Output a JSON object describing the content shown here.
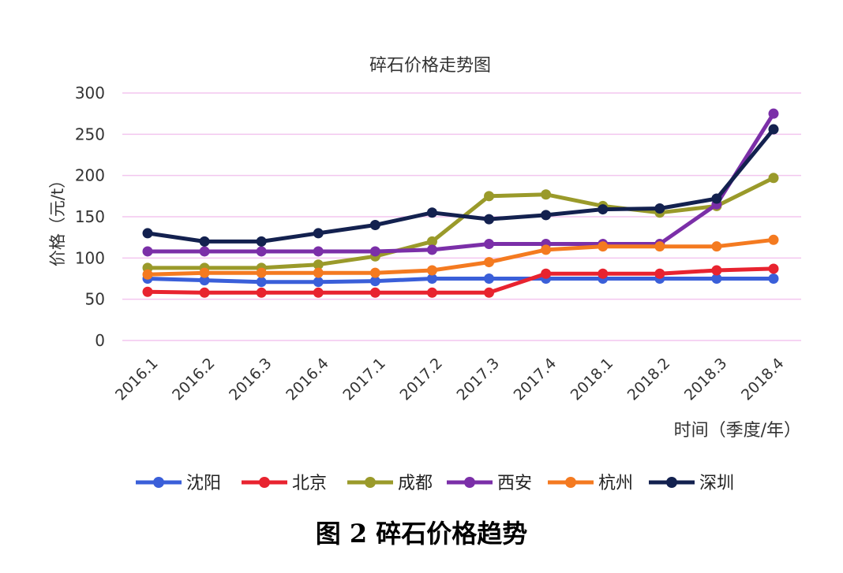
{
  "caption": "图 2 碎石价格趋势",
  "chart_data": {
    "type": "line",
    "title": "碎石价格走势图",
    "xlabel": "时间（季度/年）",
    "ylabel": "价格（元/t）",
    "ylim": [
      0,
      300
    ],
    "yticks": [
      0,
      50,
      100,
      150,
      200,
      250,
      300
    ],
    "grid": true,
    "legend_position": "bottom",
    "categories": [
      "2016.1",
      "2016.2",
      "2016.3",
      "2016.4",
      "2017.1",
      "2017.2",
      "2017.3",
      "2017.4",
      "2018.1",
      "2018.2",
      "2018.3",
      "2018.4"
    ],
    "series": [
      {
        "name": "沈阳",
        "color": "#3a5fd9",
        "values": [
          75,
          73,
          71,
          71,
          72,
          75,
          75,
          75,
          75,
          75,
          75,
          75
        ]
      },
      {
        "name": "北京",
        "color": "#e8232f",
        "values": [
          59,
          58,
          58,
          58,
          58,
          58,
          58,
          81,
          81,
          81,
          85,
          87
        ]
      },
      {
        "name": "成都",
        "color": "#9a9a2a",
        "values": [
          88,
          88,
          88,
          92,
          102,
          120,
          175,
          177,
          163,
          155,
          163,
          197
        ]
      },
      {
        "name": "西安",
        "color": "#7b2fa8",
        "values": [
          108,
          108,
          108,
          108,
          108,
          110,
          117,
          117,
          117,
          117,
          165,
          275
        ]
      },
      {
        "name": "杭州",
        "color": "#f47a20",
        "values": [
          80,
          82,
          82,
          82,
          82,
          85,
          95,
          110,
          114,
          114,
          114,
          122
        ]
      },
      {
        "name": "深圳",
        "color": "#13214f",
        "values": [
          130,
          120,
          120,
          130,
          140,
          155,
          147,
          152,
          159,
          160,
          172,
          256
        ]
      }
    ]
  }
}
